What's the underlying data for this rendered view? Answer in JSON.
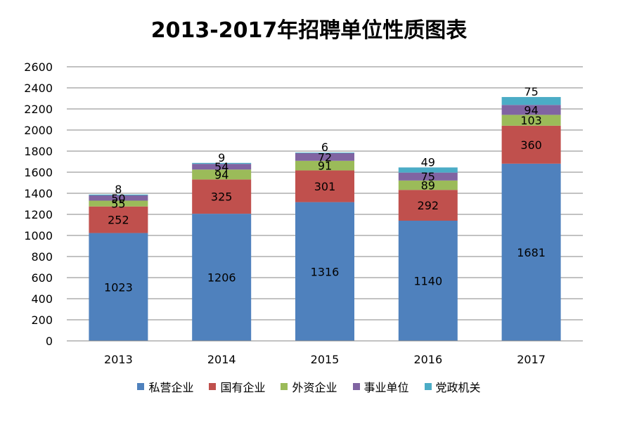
{
  "chart_data": {
    "type": "bar",
    "stacked": true,
    "title": "2013-2017年招聘单位性质图表",
    "xlabel": "",
    "ylabel": "",
    "categories": [
      "2013",
      "2014",
      "2015",
      "2016",
      "2017"
    ],
    "ylim": [
      0,
      2600
    ],
    "yticks": [
      0,
      200,
      400,
      600,
      800,
      1000,
      1200,
      1400,
      1600,
      1800,
      2000,
      2200,
      2400,
      2600
    ],
    "grid": true,
    "legend_position": "bottom",
    "series": [
      {
        "name": "私营企业",
        "color": "#4F81BD",
        "values": [
          1023,
          1206,
          1316,
          1140,
          1681
        ]
      },
      {
        "name": "国有企业",
        "color": "#C0504D",
        "values": [
          252,
          325,
          301,
          292,
          360
        ]
      },
      {
        "name": "外资企业",
        "color": "#9BBB59",
        "values": [
          55,
          94,
          91,
          89,
          103
        ]
      },
      {
        "name": "事业单位",
        "color": "#8064A2",
        "values": [
          50,
          54,
          72,
          75,
          94
        ]
      },
      {
        "name": "党政机关",
        "color": "#4BACC6",
        "values": [
          8,
          9,
          6,
          49,
          75
        ]
      }
    ]
  }
}
